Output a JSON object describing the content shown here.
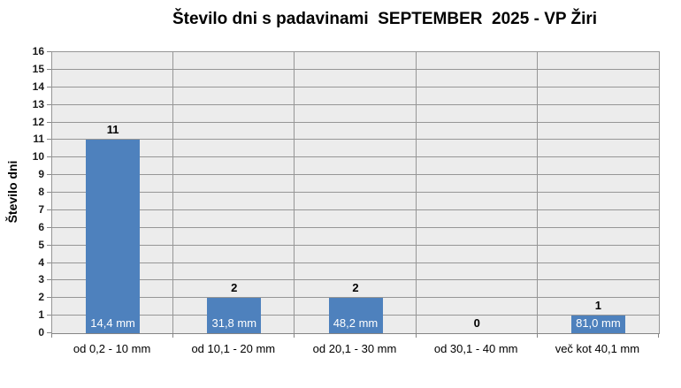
{
  "chart_data": {
    "type": "bar",
    "title": "Število dni s padavinami  SEPTEMBER  2025 - VP Žiri",
    "ylabel": "Število dni",
    "xlabel": "",
    "categories": [
      "od 0,2 - 10 mm",
      "od 10,1 - 20 mm",
      "od 20,1 - 30 mm",
      "od 30,1 - 40 mm",
      "več kot 40,1 mm"
    ],
    "values": [
      11,
      2,
      2,
      0,
      1
    ],
    "value_labels": [
      "11",
      "2",
      "2",
      "0",
      "1"
    ],
    "bar_inner_labels": [
      "14,4 mm",
      "31,8 mm",
      "48,2 mm",
      "",
      "81,0 mm"
    ],
    "ylim": [
      0,
      16
    ],
    "ytick_step": 1,
    "grid": true,
    "legend": null,
    "colors": {
      "bar": "#4E81BD",
      "plot_background": "#ECECEC",
      "gridline": "#969696",
      "axis": "#858585",
      "tick_text": "#1A1A1A",
      "bar_label_text": "#FFFFFF",
      "page_background": "#FFFFFF"
    }
  }
}
